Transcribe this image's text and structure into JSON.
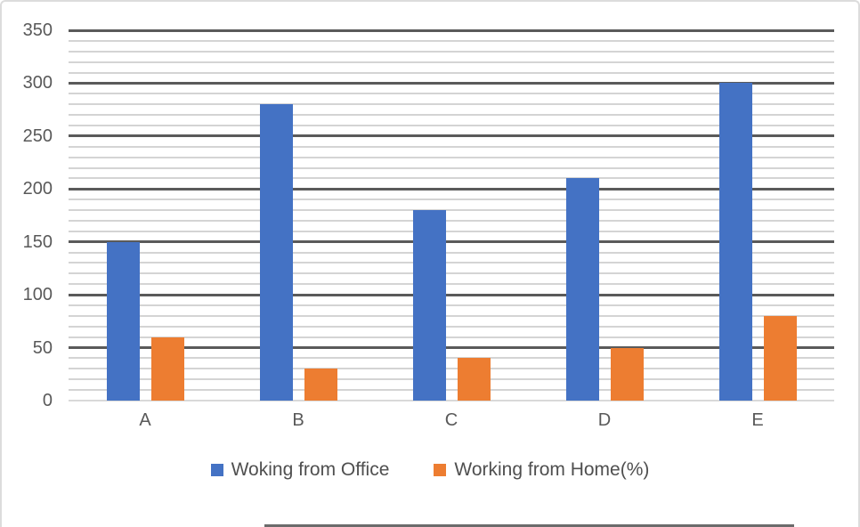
{
  "chart_data": {
    "type": "bar",
    "title": "",
    "categories": [
      "A",
      "B",
      "C",
      "D",
      "E"
    ],
    "series": [
      {
        "name": "Woking from Office",
        "color": "#4472C4",
        "values": [
          150,
          280,
          180,
          210,
          300
        ]
      },
      {
        "name": "Working from Home(%)",
        "color": "#ED7D31",
        "values": [
          60,
          30,
          40,
          50,
          80
        ]
      }
    ],
    "ylim": [
      0,
      350
    ],
    "y_major_step": 50,
    "y_minor_step": 10,
    "y_ticks": [
      0,
      50,
      100,
      150,
      200,
      250,
      300,
      350
    ],
    "xlabel": "",
    "ylabel": "",
    "grid": "major+minor horizontal",
    "legend_position": "bottom"
  },
  "colors": {
    "major_gridline": "#5a5a5a",
    "minor_gridline": "#d4d4d4",
    "axis_line": "#d9d9d9",
    "axis_text": "#595959",
    "legend_text": "#4f4f4f",
    "chart_border": "#dcdcdc",
    "bottom_edge": "#6b6b6b",
    "background": "#ffffff"
  }
}
